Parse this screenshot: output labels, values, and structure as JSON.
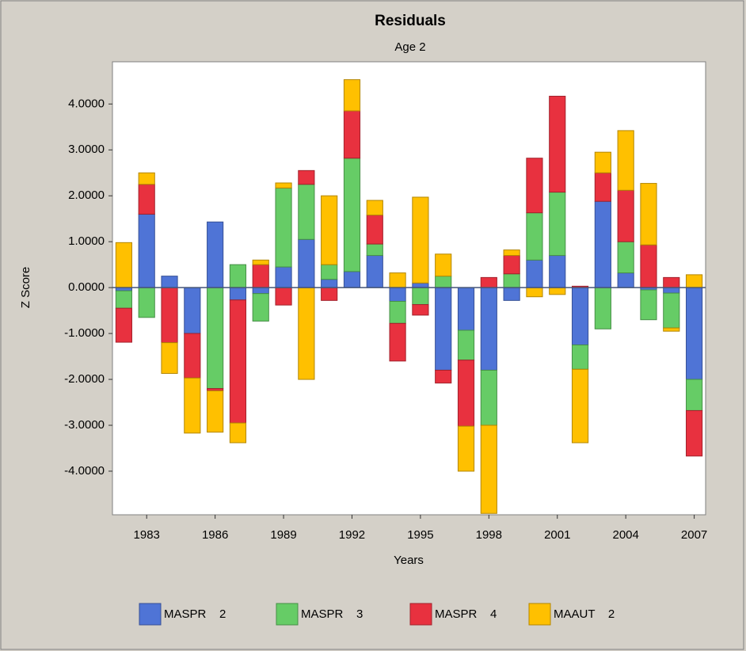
{
  "chart_data": {
    "type": "stacked-bar",
    "title": "Residuals",
    "subtitle": "Age 2",
    "x_label": "Years",
    "y_label": "Z Score",
    "x": [
      1982,
      1983,
      1984,
      1985,
      1986,
      1987,
      1988,
      1989,
      1990,
      1991,
      1992,
      1993,
      1994,
      1995,
      1996,
      1997,
      1998,
      1999,
      2000,
      2001,
      2002,
      2003,
      2004,
      2005,
      2006,
      2007
    ],
    "xlim": [
      1981.5,
      2007.5
    ],
    "xticks": [
      1983,
      1986,
      1989,
      1992,
      1995,
      1998,
      2001,
      2004,
      2007
    ],
    "ylim": [
      -4.95,
      4.92
    ],
    "yticks": [
      {
        "value": -4,
        "label": "-4.0000"
      },
      {
        "value": -3,
        "label": "-3.0000"
      },
      {
        "value": -2,
        "label": "-2.0000"
      },
      {
        "value": -1,
        "label": "-1.0000"
      },
      {
        "value": 0,
        "label": "0.0000"
      },
      {
        "value": 1,
        "label": "1.0000"
      },
      {
        "value": 2,
        "label": "2.0000"
      },
      {
        "value": 3,
        "label": "3.0000"
      },
      {
        "value": 4,
        "label": "4.0000"
      }
    ],
    "grid": false,
    "series": [
      {
        "name": "MASPR    2",
        "color": "#4f74d6",
        "values": [
          -0.07,
          1.6,
          0.25,
          -1.0,
          1.43,
          -0.27,
          -0.13,
          0.45,
          1.05,
          0.18,
          0.35,
          0.7,
          -0.3,
          0.1,
          -1.8,
          -0.93,
          -1.8,
          -0.28,
          0.6,
          0.7,
          -1.25,
          1.88,
          0.32,
          -0.05,
          -0.12,
          -2.0
        ]
      },
      {
        "name": "MASPR    3",
        "color": "#66cc66",
        "values": [
          -0.38,
          -0.65,
          0,
          0,
          -2.2,
          0.5,
          -0.6,
          1.72,
          1.2,
          0.32,
          2.47,
          0.25,
          -0.48,
          -0.37,
          0.25,
          -0.65,
          -1.2,
          0.3,
          1.03,
          1.38,
          -0.53,
          -0.9,
          0.68,
          -0.65,
          -0.76,
          -0.68
        ]
      },
      {
        "name": "MASPR    4",
        "color": "#e8313f",
        "values": [
          -0.74,
          0.65,
          -1.2,
          -0.97,
          -0.05,
          -2.68,
          0.5,
          -0.38,
          0.3,
          -0.28,
          1.03,
          0.63,
          -0.82,
          -0.23,
          -0.28,
          -1.44,
          0.22,
          0.4,
          1.19,
          2.09,
          0.03,
          0.62,
          1.12,
          0.93,
          0.22,
          -0.99
        ]
      },
      {
        "name": "MAAUT    2",
        "color": "#ffc000",
        "values": [
          0.98,
          0.25,
          -0.67,
          -1.2,
          -0.9,
          -0.43,
          0.1,
          0.11,
          -2.0,
          1.5,
          0.68,
          0.32,
          0.32,
          1.87,
          0.48,
          -0.98,
          -1.92,
          0.12,
          -0.2,
          -0.15,
          -1.6,
          0.45,
          1.3,
          1.34,
          -0.07,
          0.28
        ]
      }
    ]
  }
}
